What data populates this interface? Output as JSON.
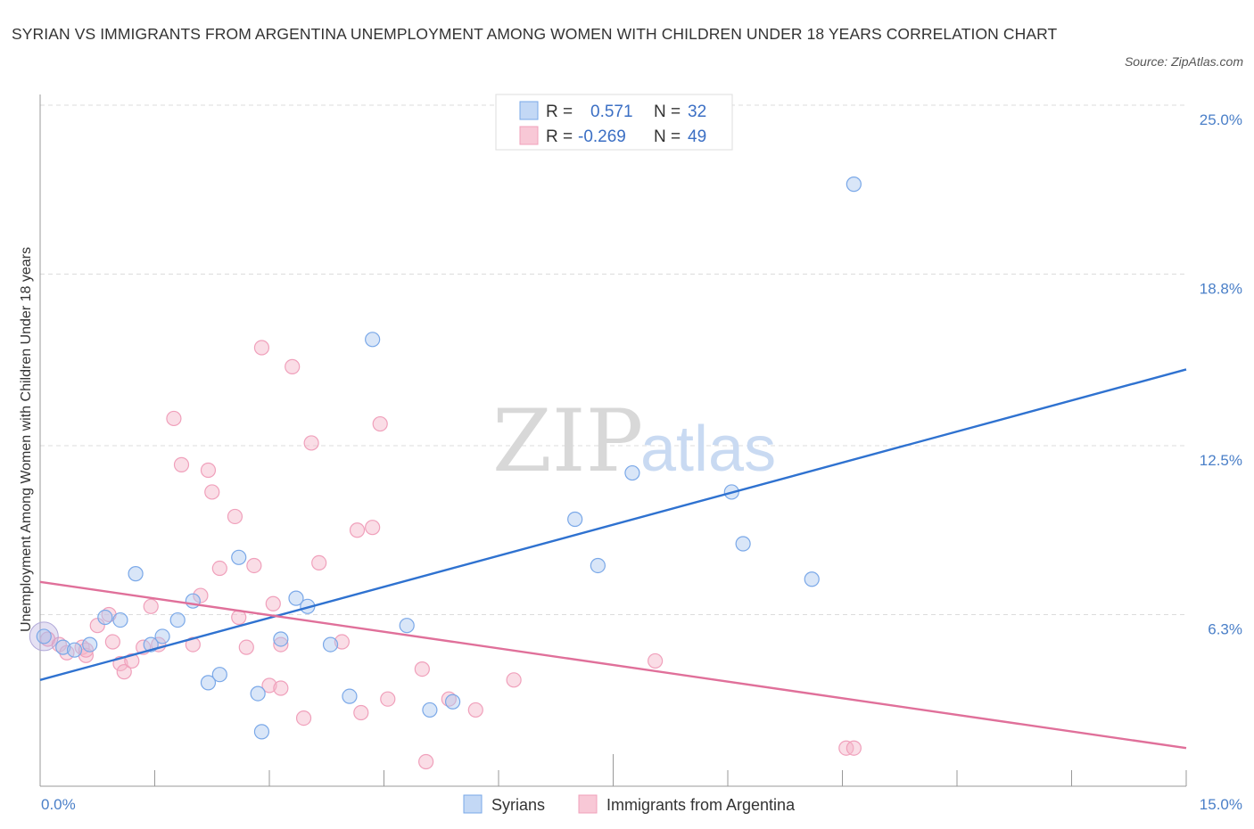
{
  "header": {
    "title": "SYRIAN VS IMMIGRANTS FROM ARGENTINA UNEMPLOYMENT AMONG WOMEN WITH CHILDREN UNDER 18 YEARS CORRELATION CHART",
    "source": "Source: ZipAtlas.com"
  },
  "watermark": {
    "zip": "ZIP",
    "atlas": "atlas"
  },
  "legend": {
    "r_label": "R =",
    "n_label": "N =",
    "rows": [
      {
        "r": "0.571",
        "n": "32"
      },
      {
        "r": "-0.269",
        "n": "49"
      }
    ]
  },
  "chart_data": {
    "type": "scatter",
    "title": "SYRIAN VS IMMIGRANTS FROM ARGENTINA UNEMPLOYMENT AMONG WOMEN WITH CHILDREN UNDER 18 YEARS CORRELATION CHART",
    "xlabel": "",
    "ylabel": "Unemployment Among Women with Children Under 18 years",
    "xlim": [
      0,
      15
    ],
    "ylim": [
      0,
      25
    ],
    "x_tick_labels": [
      "0.0%",
      "15.0%"
    ],
    "y_ticks": [
      6.3,
      12.5,
      18.8,
      25.0
    ],
    "y_tick_labels": [
      "6.3%",
      "12.5%",
      "18.8%",
      "25.0%"
    ],
    "grid": "horizontal dashed",
    "legend_position": "top-center",
    "series": [
      {
        "name": "Syrians",
        "color": "#7aa8e8",
        "r": 0.571,
        "n": 32,
        "trend": {
          "x": [
            0,
            15
          ],
          "y": [
            3.9,
            15.3
          ]
        },
        "points": [
          [
            0.05,
            5.5
          ],
          [
            0.3,
            5.1
          ],
          [
            0.45,
            5.0
          ],
          [
            0.65,
            5.2
          ],
          [
            0.85,
            6.2
          ],
          [
            1.05,
            6.1
          ],
          [
            1.25,
            7.8
          ],
          [
            1.45,
            5.2
          ],
          [
            1.6,
            5.5
          ],
          [
            1.8,
            6.1
          ],
          [
            2.0,
            6.8
          ],
          [
            2.2,
            3.8
          ],
          [
            2.35,
            4.1
          ],
          [
            2.6,
            8.4
          ],
          [
            2.85,
            3.4
          ],
          [
            2.9,
            2.0
          ],
          [
            3.15,
            5.4
          ],
          [
            3.35,
            6.9
          ],
          [
            3.5,
            6.6
          ],
          [
            3.8,
            5.2
          ],
          [
            4.05,
            3.3
          ],
          [
            4.35,
            16.4
          ],
          [
            4.8,
            5.9
          ],
          [
            5.1,
            2.8
          ],
          [
            5.4,
            3.1
          ],
          [
            7.0,
            9.8
          ],
          [
            7.3,
            8.1
          ],
          [
            7.75,
            11.5
          ],
          [
            9.05,
            10.8
          ],
          [
            9.2,
            8.9
          ],
          [
            10.1,
            7.6
          ],
          [
            10.65,
            22.1
          ]
        ]
      },
      {
        "name": "Immigrants from Argentina",
        "color": "#f0a0bb",
        "r": -0.269,
        "n": 49,
        "trend": {
          "x": [
            0,
            15
          ],
          "y": [
            7.5,
            1.4
          ]
        },
        "points": [
          [
            0.1,
            5.4
          ],
          [
            0.25,
            5.2
          ],
          [
            0.35,
            4.9
          ],
          [
            0.55,
            5.1
          ],
          [
            0.6,
            4.8
          ],
          [
            0.75,
            5.9
          ],
          [
            0.95,
            5.3
          ],
          [
            0.9,
            6.3
          ],
          [
            1.05,
            4.5
          ],
          [
            1.1,
            4.2
          ],
          [
            1.2,
            4.6
          ],
          [
            1.35,
            5.1
          ],
          [
            1.45,
            6.6
          ],
          [
            1.55,
            5.2
          ],
          [
            1.75,
            13.5
          ],
          [
            1.85,
            11.8
          ],
          [
            2.0,
            5.2
          ],
          [
            2.1,
            7.0
          ],
          [
            2.2,
            11.6
          ],
          [
            2.25,
            10.8
          ],
          [
            2.35,
            8.0
          ],
          [
            2.55,
            9.9
          ],
          [
            2.6,
            6.2
          ],
          [
            2.7,
            5.1
          ],
          [
            2.8,
            8.1
          ],
          [
            2.9,
            16.1
          ],
          [
            3.0,
            3.7
          ],
          [
            3.05,
            6.7
          ],
          [
            3.15,
            3.6
          ],
          [
            3.15,
            5.2
          ],
          [
            3.3,
            15.4
          ],
          [
            3.45,
            2.5
          ],
          [
            3.55,
            12.6
          ],
          [
            3.65,
            8.2
          ],
          [
            3.95,
            5.3
          ],
          [
            4.15,
            9.4
          ],
          [
            4.2,
            2.7
          ],
          [
            4.35,
            9.5
          ],
          [
            4.45,
            13.3
          ],
          [
            4.55,
            3.2
          ],
          [
            5.0,
            4.3
          ],
          [
            5.05,
            0.9
          ],
          [
            5.35,
            3.2
          ],
          [
            5.7,
            2.8
          ],
          [
            6.2,
            3.9
          ],
          [
            8.05,
            4.6
          ],
          [
            10.55,
            1.4
          ],
          [
            10.65,
            1.4
          ],
          [
            0.6,
            5.0
          ]
        ]
      }
    ]
  }
}
